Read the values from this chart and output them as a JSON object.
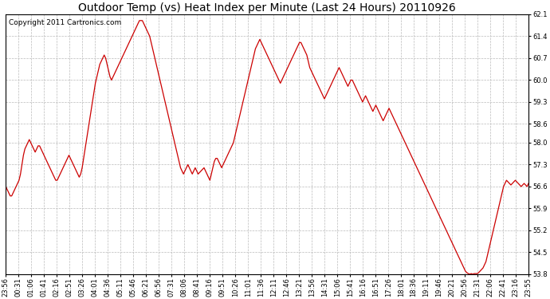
{
  "title": "Outdoor Temp (vs) Heat Index per Minute (Last 24 Hours) 20110926",
  "copyright": "Copyright 2011 Cartronics.com",
  "ylim": [
    53.8,
    62.1
  ],
  "yticks": [
    53.8,
    54.5,
    55.2,
    55.9,
    56.6,
    57.3,
    58.0,
    58.6,
    59.3,
    60.0,
    60.7,
    61.4,
    62.1
  ],
  "xtick_labels": [
    "23:56",
    "00:31",
    "01:06",
    "01:41",
    "02:16",
    "02:51",
    "03:26",
    "04:01",
    "04:36",
    "05:11",
    "05:46",
    "06:21",
    "06:56",
    "07:31",
    "08:06",
    "08:41",
    "09:16",
    "09:51",
    "10:26",
    "11:01",
    "11:36",
    "12:11",
    "12:46",
    "13:21",
    "13:56",
    "14:31",
    "15:06",
    "15:41",
    "16:16",
    "16:51",
    "17:26",
    "18:01",
    "18:36",
    "19:11",
    "19:46",
    "20:21",
    "20:56",
    "21:31",
    "22:06",
    "22:41",
    "23:16",
    "23:55"
  ],
  "line_color": "#cc0000",
  "background_color": "#ffffff",
  "grid_color": "#bbbbbb",
  "title_fontsize": 10,
  "copyright_fontsize": 6.5,
  "tick_fontsize": 6,
  "y_values": [
    56.6,
    56.5,
    56.4,
    56.3,
    56.3,
    56.4,
    56.5,
    56.6,
    56.7,
    56.8,
    57.0,
    57.3,
    57.6,
    57.8,
    57.9,
    58.0,
    58.1,
    58.0,
    57.9,
    57.8,
    57.7,
    57.8,
    57.9,
    57.9,
    57.8,
    57.7,
    57.6,
    57.5,
    57.4,
    57.3,
    57.2,
    57.1,
    57.0,
    56.9,
    56.8,
    56.8,
    56.9,
    57.0,
    57.1,
    57.2,
    57.3,
    57.4,
    57.5,
    57.6,
    57.5,
    57.4,
    57.3,
    57.2,
    57.1,
    57.0,
    56.9,
    57.0,
    57.2,
    57.5,
    57.8,
    58.1,
    58.4,
    58.7,
    59.0,
    59.3,
    59.6,
    59.9,
    60.1,
    60.3,
    60.5,
    60.6,
    60.7,
    60.8,
    60.7,
    60.5,
    60.3,
    60.1,
    60.0,
    60.1,
    60.2,
    60.3,
    60.4,
    60.5,
    60.6,
    60.7,
    60.8,
    60.9,
    61.0,
    61.1,
    61.2,
    61.3,
    61.4,
    61.5,
    61.6,
    61.7,
    61.8,
    61.9,
    61.9,
    61.9,
    61.8,
    61.7,
    61.6,
    61.5,
    61.4,
    61.2,
    61.0,
    60.8,
    60.6,
    60.4,
    60.2,
    60.0,
    59.8,
    59.6,
    59.4,
    59.2,
    59.0,
    58.8,
    58.6,
    58.4,
    58.2,
    58.0,
    57.8,
    57.6,
    57.4,
    57.2,
    57.1,
    57.0,
    57.1,
    57.2,
    57.3,
    57.2,
    57.1,
    57.0,
    57.1,
    57.2,
    57.1,
    57.0,
    57.05,
    57.1,
    57.15,
    57.2,
    57.1,
    57.0,
    56.9,
    56.8,
    57.0,
    57.2,
    57.4,
    57.5,
    57.5,
    57.4,
    57.3,
    57.2,
    57.3,
    57.4,
    57.5,
    57.6,
    57.7,
    57.8,
    57.9,
    58.0,
    58.2,
    58.4,
    58.6,
    58.8,
    59.0,
    59.2,
    59.4,
    59.6,
    59.8,
    60.0,
    60.2,
    60.4,
    60.6,
    60.8,
    61.0,
    61.1,
    61.2,
    61.3,
    61.2,
    61.1,
    61.0,
    60.9,
    60.8,
    60.7,
    60.6,
    60.5,
    60.4,
    60.3,
    60.2,
    60.1,
    60.0,
    59.9,
    60.0,
    60.1,
    60.2,
    60.3,
    60.4,
    60.5,
    60.6,
    60.7,
    60.8,
    60.9,
    61.0,
    61.1,
    61.2,
    61.2,
    61.1,
    61.0,
    60.9,
    60.8,
    60.6,
    60.4,
    60.3,
    60.2,
    60.1,
    60.0,
    59.9,
    59.8,
    59.7,
    59.6,
    59.5,
    59.4,
    59.5,
    59.6,
    59.7,
    59.8,
    59.9,
    60.0,
    60.1,
    60.2,
    60.3,
    60.4,
    60.3,
    60.2,
    60.1,
    60.0,
    59.9,
    59.8,
    59.9,
    60.0,
    60.0,
    59.9,
    59.8,
    59.7,
    59.6,
    59.5,
    59.4,
    59.3,
    59.4,
    59.5,
    59.4,
    59.3,
    59.2,
    59.1,
    59.0,
    59.1,
    59.2,
    59.1,
    59.0,
    58.9,
    58.8,
    58.7,
    58.8,
    58.9,
    59.0,
    59.1,
    59.0,
    58.9,
    58.8,
    58.7,
    58.6,
    58.5,
    58.4,
    58.3,
    58.2,
    58.1,
    58.0,
    57.9,
    57.8,
    57.7,
    57.6,
    57.5,
    57.4,
    57.3,
    57.2,
    57.1,
    57.0,
    56.9,
    56.8,
    56.7,
    56.6,
    56.5,
    56.4,
    56.3,
    56.2,
    56.1,
    56.0,
    55.9,
    55.8,
    55.7,
    55.6,
    55.5,
    55.4,
    55.3,
    55.2,
    55.1,
    55.0,
    54.9,
    54.8,
    54.7,
    54.6,
    54.5,
    54.4,
    54.3,
    54.2,
    54.1,
    54.0,
    53.9,
    53.85,
    53.82,
    53.8,
    53.82,
    53.8,
    53.82,
    53.82,
    53.82,
    53.85,
    53.9,
    53.95,
    54.0,
    54.1,
    54.2,
    54.4,
    54.6,
    54.8,
    55.0,
    55.2,
    55.4,
    55.6,
    55.8,
    56.0,
    56.2,
    56.4,
    56.6,
    56.7,
    56.8,
    56.75,
    56.7,
    56.65,
    56.7,
    56.75,
    56.8,
    56.75,
    56.7,
    56.65,
    56.6,
    56.65,
    56.7,
    56.65,
    56.6,
    56.7
  ]
}
